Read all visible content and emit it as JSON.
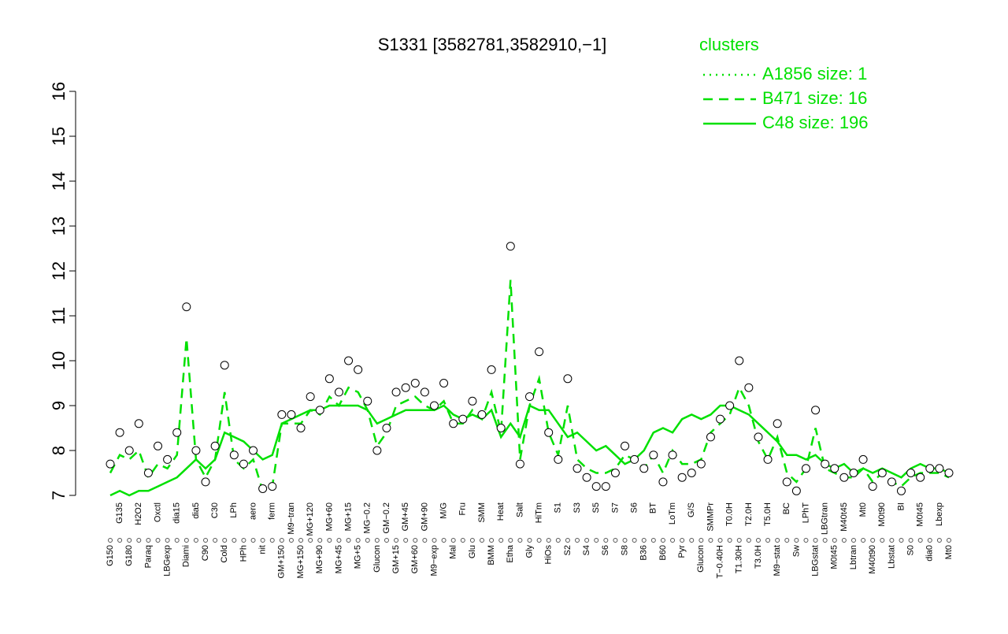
{
  "chart_data": {
    "type": "line",
    "title": "S1331 [3582781,3582910,−1]",
    "legend_title": "clusters",
    "categories": [
      "G150",
      "G135",
      "G180",
      "H2O2",
      "Paraq",
      "Oxctl",
      "LBGexp",
      "dia15",
      "Diami",
      "dia5",
      "C90",
      "C30",
      "Cold",
      "LPh",
      "HPh",
      "aero",
      "nit",
      "ferm",
      "GM+150",
      "M9−tran",
      "MG+150",
      "MG+120",
      "MG+90",
      "MG+60",
      "MG+45",
      "MG+15",
      "MG+5",
      "MG−0.2",
      "Glucon",
      "GM−0.2",
      "GM+15",
      "GM+45",
      "GM+60",
      "GM+90",
      "M9−exp",
      "M/G",
      "Mal",
      "Fru",
      "Glu",
      "SMM",
      "BMM",
      "Heat",
      "Etha",
      "Salt",
      "Gly",
      "HiTm",
      "HiOs",
      "S1",
      "S2",
      "S3",
      "S4",
      "S5",
      "S6",
      "S7",
      "S8",
      "S6",
      "B36",
      "BT",
      "B60",
      "LoTm",
      "Pyr",
      "G/S",
      "Glucon",
      "SMMPr",
      "T−0.40H",
      "T0.0H",
      "T1.30H",
      "T2.0H",
      "T3.0H",
      "T5.0H",
      "M9−stat",
      "BC",
      "Sw",
      "LPhT",
      "LBGstat",
      "LBGtran",
      "M0t45",
      "M40t45",
      "Lbtran",
      "Mt0",
      "M40t90",
      "M0t90",
      "Lbstat",
      "BI",
      "S0",
      "M0t45",
      "dia0",
      "Lbexp",
      "Mt0"
    ],
    "points": {
      "color": "#000000",
      "fill": "#ffffff",
      "values": [
        7.7,
        8.4,
        8.0,
        8.6,
        7.5,
        8.1,
        7.8,
        8.4,
        11.2,
        8.0,
        7.3,
        8.1,
        9.9,
        7.9,
        7.7,
        8.0,
        7.15,
        7.2,
        8.8,
        8.8,
        8.5,
        9.2,
        8.9,
        9.6,
        9.3,
        10.0,
        9.8,
        9.1,
        8.0,
        8.5,
        9.3,
        9.4,
        9.5,
        9.3,
        9.0,
        9.5,
        8.6,
        8.7,
        9.1,
        8.8,
        9.8,
        8.5,
        12.55,
        7.7,
        9.2,
        10.2,
        8.4,
        7.8,
        9.6,
        7.6,
        7.4,
        7.2,
        7.2,
        7.5,
        8.1,
        7.8,
        7.6,
        7.9,
        7.3,
        7.9,
        7.4,
        7.5,
        7.7,
        8.3,
        8.7,
        9.0,
        10.0,
        9.4,
        8.3,
        7.8,
        8.6,
        7.3,
        7.1,
        7.6,
        8.9,
        7.7,
        7.6,
        7.4,
        7.5,
        7.8,
        7.2,
        7.5,
        7.3,
        7.1,
        7.5,
        7.4,
        7.6,
        7.6,
        7.5
      ]
    },
    "series": [
      {
        "name": "A1856 size: 1",
        "color": "#00e000",
        "dash": "dotted"
      },
      {
        "name": "B471 size: 16",
        "color": "#00e000",
        "dash": "dashed",
        "values": [
          7.5,
          7.9,
          7.8,
          8.0,
          7.4,
          7.7,
          7.6,
          7.9,
          10.5,
          7.8,
          7.4,
          7.8,
          9.3,
          7.8,
          7.6,
          7.8,
          7.1,
          7.2,
          8.6,
          8.6,
          8.6,
          8.9,
          8.8,
          9.2,
          9.0,
          9.4,
          9.3,
          8.9,
          8.1,
          8.4,
          9.0,
          9.1,
          9.2,
          9.0,
          8.9,
          9.1,
          8.6,
          8.6,
          8.9,
          8.7,
          9.3,
          8.4,
          11.8,
          7.8,
          9.0,
          9.6,
          8.4,
          7.9,
          9.0,
          7.8,
          7.6,
          7.5,
          7.5,
          7.6,
          7.9,
          7.8,
          7.6,
          7.9,
          7.5,
          8.0,
          7.7,
          7.7,
          7.8,
          8.4,
          8.6,
          8.8,
          9.4,
          9.0,
          8.2,
          7.8,
          8.3,
          7.5,
          7.3,
          7.6,
          8.5,
          7.6,
          7.5,
          7.4,
          7.4,
          7.6,
          7.3,
          7.5,
          7.3,
          7.2,
          7.4,
          7.5,
          7.5,
          7.5,
          7.4
        ]
      },
      {
        "name": "C48 size: 196",
        "color": "#00e000",
        "dash": "solid",
        "values": [
          7.0,
          7.1,
          7.0,
          7.1,
          7.1,
          7.2,
          7.3,
          7.4,
          7.6,
          7.8,
          7.6,
          7.8,
          8.4,
          8.3,
          8.2,
          8.0,
          7.8,
          7.9,
          8.6,
          8.7,
          8.8,
          8.9,
          8.9,
          9.0,
          9.0,
          9.0,
          9.0,
          8.9,
          8.6,
          8.7,
          8.8,
          8.9,
          8.9,
          8.9,
          8.9,
          9.0,
          8.8,
          8.7,
          8.8,
          8.7,
          8.9,
          8.3,
          8.6,
          8.3,
          9.0,
          8.9,
          8.9,
          8.6,
          8.3,
          8.4,
          8.2,
          8.0,
          8.1,
          7.9,
          7.7,
          7.8,
          8.0,
          8.4,
          8.5,
          8.4,
          8.7,
          8.8,
          8.7,
          8.8,
          9.0,
          9.0,
          8.9,
          8.8,
          8.6,
          8.4,
          8.2,
          7.9,
          7.9,
          7.8,
          7.9,
          7.7,
          7.6,
          7.7,
          7.5,
          7.6,
          7.5,
          7.6,
          7.5,
          7.4,
          7.6,
          7.7,
          7.6,
          7.6,
          7.5
        ]
      }
    ],
    "ylim": [
      7,
      16
    ],
    "yticks": [
      7,
      8,
      9,
      10,
      11,
      12,
      13,
      14,
      15,
      16
    ]
  }
}
